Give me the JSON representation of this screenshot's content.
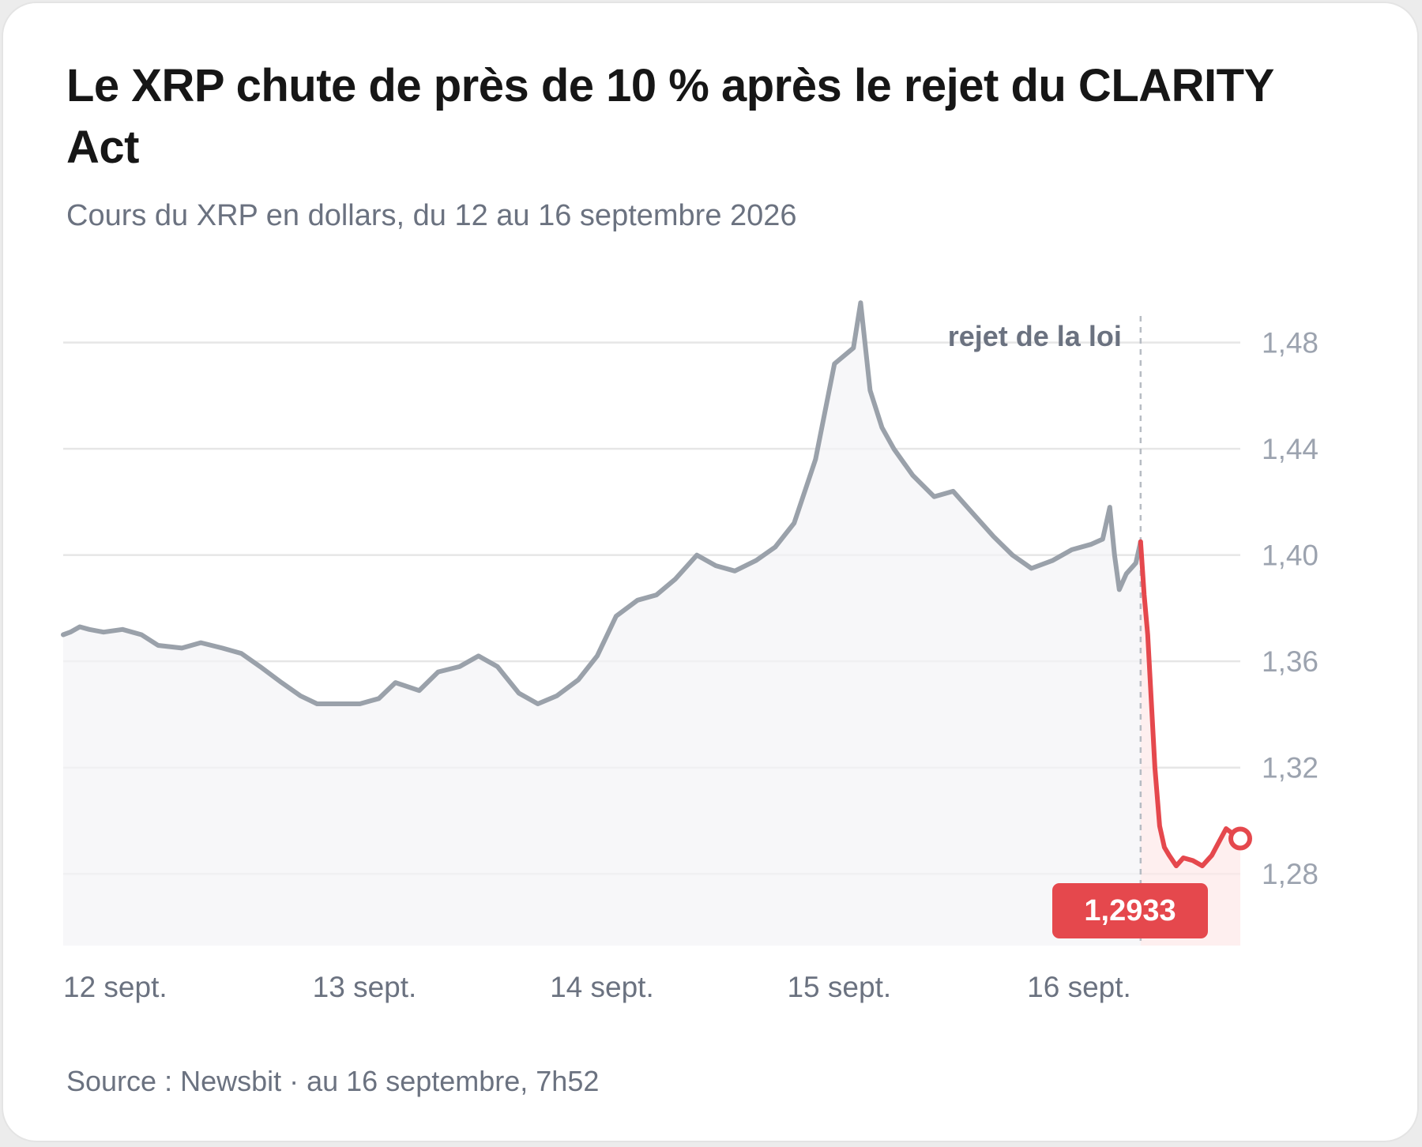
{
  "title": "Le XRP chute de près de 10 % après le rejet du CLARITY Act",
  "subtitle": "Cours du XRP en dollars, du 12 au 16 septembre 2026",
  "source": "Source : Newsbit · au 16 septembre, 7h52",
  "colors": {
    "line_before": "#9aa1aa",
    "line_after": "#e5484d",
    "badge": "#e5484d",
    "grid": "#e6e6e6",
    "annotation": "#6b7280"
  },
  "chart_data": {
    "type": "line",
    "title": "Le XRP chute de près de 10 % après le rejet du CLARITY Act",
    "subtitle": "Cours du XRP en dollars, du 12 au 16 septembre 2026",
    "xlabel": "",
    "ylabel": "",
    "x_ticks": [
      {
        "label": "12 sept.",
        "day": 0
      },
      {
        "label": "13 sept.",
        "day": 1.27
      },
      {
        "label": "14 sept.",
        "day": 2.27
      },
      {
        "label": "15 sept.",
        "day": 3.27
      },
      {
        "label": "16 sept.",
        "day": 4.5
      }
    ],
    "y_ticks": [
      "1,28",
      "1,32",
      "1,36",
      "1,40",
      "1,44",
      "1,48"
    ],
    "y_tick_values": [
      1.28,
      1.32,
      1.36,
      1.4,
      1.44,
      1.48
    ],
    "ylim": [
      1.253,
      1.49
    ],
    "xlim": [
      0,
      4.96
    ],
    "grid": true,
    "legend": "none",
    "annotation": {
      "label": "rejet de la loi",
      "day": 4.54
    },
    "last_value_label": "1,2933",
    "series": [
      {
        "segment": "before",
        "points": [
          [
            0.0,
            1.37
          ],
          [
            0.03,
            1.371
          ],
          [
            0.07,
            1.373
          ],
          [
            0.11,
            1.372
          ],
          [
            0.17,
            1.371
          ],
          [
            0.25,
            1.372
          ],
          [
            0.33,
            1.37
          ],
          [
            0.4,
            1.366
          ],
          [
            0.5,
            1.365
          ],
          [
            0.58,
            1.367
          ],
          [
            0.67,
            1.365
          ],
          [
            0.75,
            1.363
          ],
          [
            0.83,
            1.358
          ],
          [
            0.92,
            1.352
          ],
          [
            1.0,
            1.347
          ],
          [
            1.07,
            1.344
          ],
          [
            1.17,
            1.344
          ],
          [
            1.25,
            1.344
          ],
          [
            1.33,
            1.346
          ],
          [
            1.4,
            1.352
          ],
          [
            1.5,
            1.349
          ],
          [
            1.58,
            1.356
          ],
          [
            1.67,
            1.358
          ],
          [
            1.75,
            1.362
          ],
          [
            1.83,
            1.358
          ],
          [
            1.92,
            1.348
          ],
          [
            2.0,
            1.344
          ],
          [
            2.08,
            1.347
          ],
          [
            2.17,
            1.353
          ],
          [
            2.25,
            1.362
          ],
          [
            2.33,
            1.377
          ],
          [
            2.42,
            1.383
          ],
          [
            2.5,
            1.385
          ],
          [
            2.58,
            1.391
          ],
          [
            2.67,
            1.4
          ],
          [
            2.75,
            1.396
          ],
          [
            2.83,
            1.394
          ],
          [
            2.92,
            1.398
          ],
          [
            3.0,
            1.403
          ],
          [
            3.08,
            1.412
          ],
          [
            3.17,
            1.436
          ],
          [
            3.25,
            1.472
          ],
          [
            3.33,
            1.478
          ],
          [
            3.36,
            1.495
          ],
          [
            3.4,
            1.462
          ],
          [
            3.45,
            1.448
          ],
          [
            3.5,
            1.44
          ],
          [
            3.58,
            1.43
          ],
          [
            3.67,
            1.422
          ],
          [
            3.75,
            1.424
          ],
          [
            3.83,
            1.416
          ],
          [
            3.92,
            1.407
          ],
          [
            4.0,
            1.4
          ],
          [
            4.08,
            1.395
          ],
          [
            4.17,
            1.398
          ],
          [
            4.25,
            1.402
          ],
          [
            4.33,
            1.404
          ],
          [
            4.38,
            1.406
          ],
          [
            4.41,
            1.418
          ],
          [
            4.43,
            1.4
          ],
          [
            4.45,
            1.387
          ],
          [
            4.48,
            1.393
          ],
          [
            4.52,
            1.397
          ],
          [
            4.54,
            1.405
          ]
        ]
      },
      {
        "segment": "after",
        "points": [
          [
            4.54,
            1.405
          ],
          [
            4.555,
            1.385
          ],
          [
            4.57,
            1.37
          ],
          [
            4.6,
            1.32
          ],
          [
            4.62,
            1.298
          ],
          [
            4.64,
            1.29
          ],
          [
            4.66,
            1.287
          ],
          [
            4.69,
            1.283
          ],
          [
            4.72,
            1.286
          ],
          [
            4.76,
            1.285
          ],
          [
            4.8,
            1.283
          ],
          [
            4.84,
            1.287
          ],
          [
            4.87,
            1.292
          ],
          [
            4.9,
            1.297
          ],
          [
            4.93,
            1.295
          ],
          [
            4.96,
            1.2933
          ]
        ]
      }
    ]
  }
}
